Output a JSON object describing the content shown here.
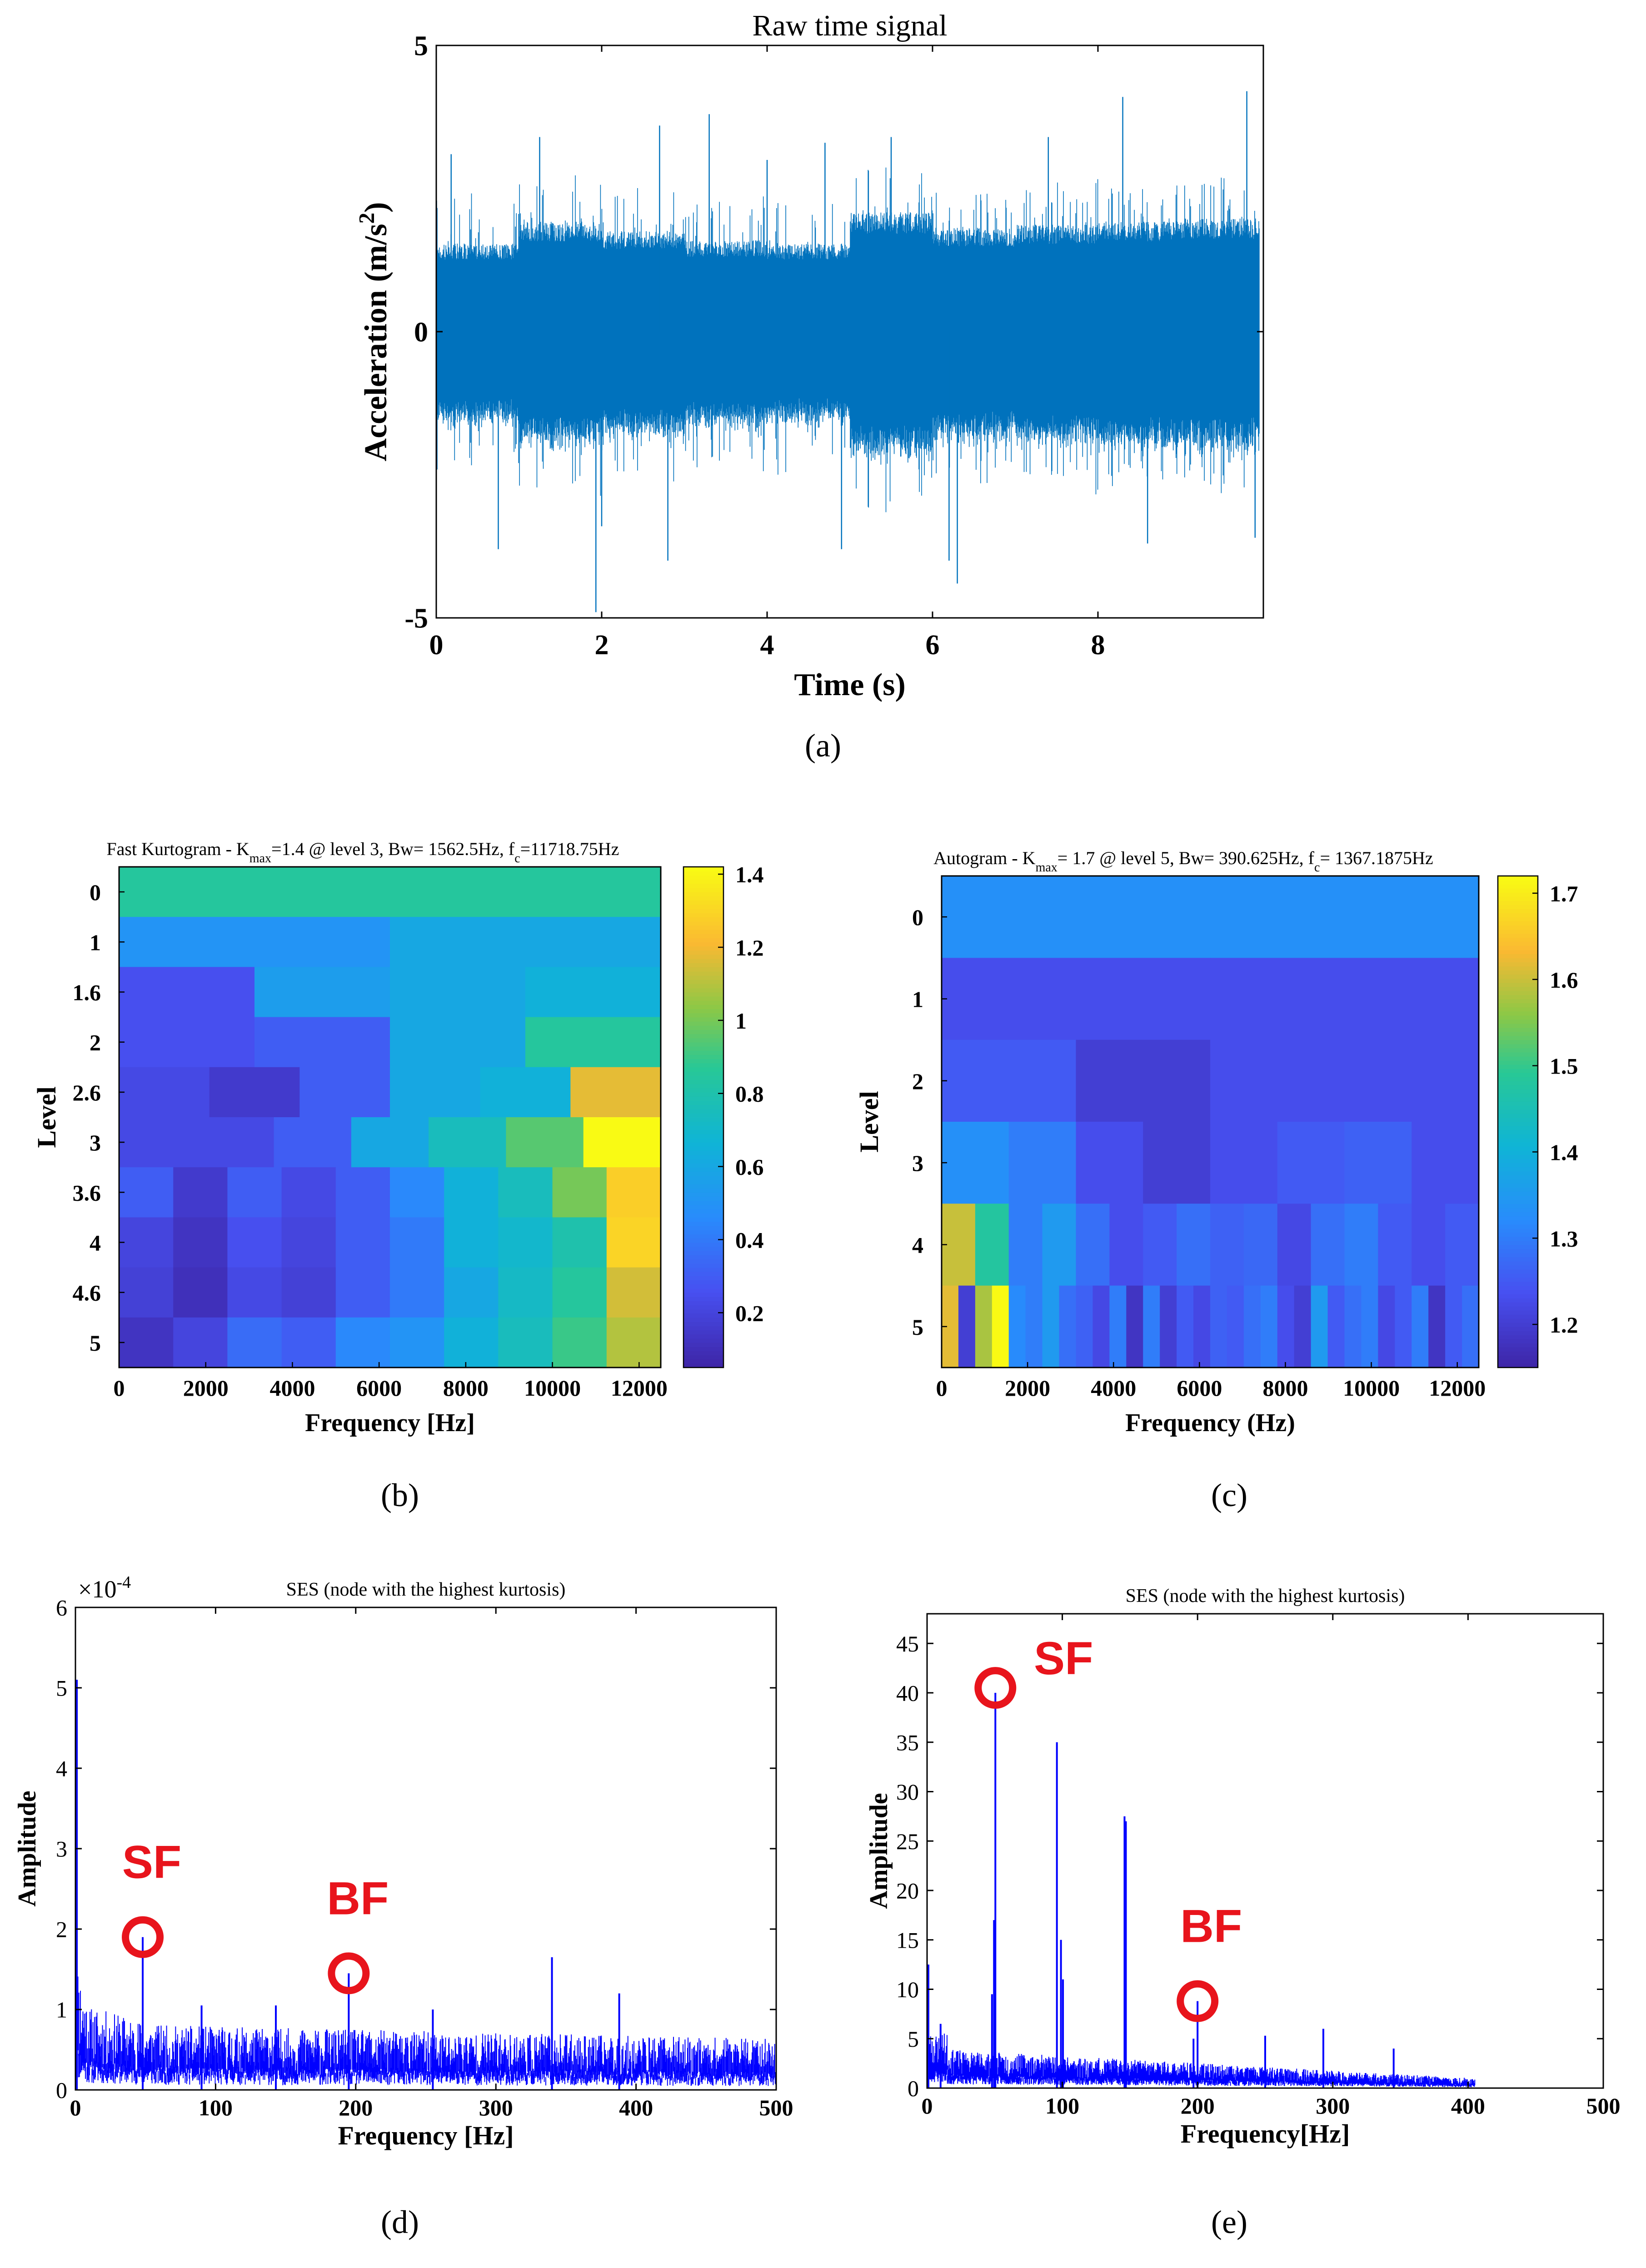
{
  "colors": {
    "signal": "#0072BD",
    "spectrum": "#0000FF",
    "annotation": "#E8141C",
    "axis": "#000000"
  },
  "captions": [
    "(a)",
    "(b)",
    "(c)",
    "(d)",
    "(e)"
  ],
  "chart_data": [
    {
      "id": "a",
      "type": "line",
      "title": "Raw time signal",
      "xlabel": "Time (s)",
      "ylabel": "Acceleration (m/s",
      "ylabel_sup": "2",
      "ylabel_end": ")",
      "xlim": [
        0,
        10
      ],
      "ylim": [
        -5,
        5
      ],
      "xticks": [
        0,
        2,
        4,
        6,
        8
      ],
      "yticks": [
        -5,
        0,
        5
      ],
      "band_core": [
        1.4,
        1.75,
        1.6,
        1.45,
        1.4,
        1.9,
        1.65,
        1.7,
        1.75,
        1.8
      ],
      "peaks": [
        {
          "t": 0.18,
          "v": 3.1
        },
        {
          "t": 0.75,
          "v": -3.8
        },
        {
          "t": 1.25,
          "v": 3.4
        },
        {
          "t": 1.93,
          "v": -4.9
        },
        {
          "t": 2.0,
          "v": -3.4
        },
        {
          "t": 2.7,
          "v": 3.6
        },
        {
          "t": 2.8,
          "v": -4.0
        },
        {
          "t": 3.3,
          "v": 3.8
        },
        {
          "t": 4.0,
          "v": 3.0
        },
        {
          "t": 4.7,
          "v": 3.3
        },
        {
          "t": 4.9,
          "v": -3.8
        },
        {
          "t": 5.5,
          "v": 3.4
        },
        {
          "t": 6.2,
          "v": -4.0
        },
        {
          "t": 6.3,
          "v": -4.4
        },
        {
          "t": 7.4,
          "v": 3.4
        },
        {
          "t": 8.3,
          "v": 4.1
        },
        {
          "t": 8.6,
          "v": -3.7
        },
        {
          "t": 9.8,
          "v": 4.2
        },
        {
          "t": 9.9,
          "v": -3.6
        }
      ]
    },
    {
      "id": "b",
      "type": "heatmap",
      "title_pre": "Fast Kurtogram - K",
      "title_sub": "max",
      "title_mid": "=1.4 @ level 3, Bw= 1562.5Hz, f",
      "title_sub2": "c",
      "title_post": "=11718.75Hz",
      "xlabel": "Frequency [Hz]",
      "ylabel": "Level",
      "xlim": [
        0,
        12500
      ],
      "xticks": [
        0,
        2000,
        4000,
        6000,
        8000,
        10000,
        12000
      ],
      "levels": [
        "0",
        "1",
        "1.6",
        "2",
        "2.6",
        "3",
        "3.6",
        "4",
        "4.6",
        "5"
      ],
      "colorbar": {
        "range": [
          0.05,
          1.42
        ],
        "ticks": [
          0.2,
          0.4,
          0.6,
          0.8,
          1,
          1.2,
          1.4
        ]
      },
      "rows": [
        [
          0.85
        ],
        [
          0.5,
          0.6
        ],
        [
          0.25,
          0.55,
          0.6,
          0.65
        ],
        [
          0.25,
          0.3,
          0.6,
          0.85
        ],
        [
          0.22,
          0.15,
          0.3,
          0.6,
          0.65,
          1.18
        ],
        [
          0.22,
          0.22,
          0.3,
          0.6,
          0.75,
          0.95,
          1.42
        ],
        [
          0.3,
          0.15,
          0.3,
          0.22,
          0.3,
          0.45,
          0.65,
          0.75,
          1.0,
          1.28
        ],
        [
          0.2,
          0.12,
          0.25,
          0.2,
          0.3,
          0.4,
          0.65,
          0.7,
          0.8,
          1.3
        ],
        [
          0.18,
          0.1,
          0.22,
          0.18,
          0.3,
          0.4,
          0.6,
          0.72,
          0.85,
          1.15
        ],
        [
          0.12,
          0.2,
          0.35,
          0.3,
          0.45,
          0.5,
          0.65,
          0.75,
          0.9,
          1.1
        ]
      ]
    },
    {
      "id": "c",
      "type": "heatmap",
      "title_pre": "Autogram - K",
      "title_sub": "max",
      "title_mid": "= 1.7 @ level 5, Bw= 390.625Hz, f",
      "title_sub2": "c",
      "title_post": "= 1367.1875Hz",
      "xlabel": "Frequency (Hz)",
      "ylabel": "Level",
      "xlim": [
        0,
        12500
      ],
      "xticks": [
        0,
        2000,
        4000,
        6000,
        8000,
        10000,
        12000
      ],
      "levels": [
        "0",
        "1",
        "2",
        "3",
        "4",
        "5"
      ],
      "colorbar": {
        "range": [
          1.15,
          1.72
        ],
        "ticks": [
          1.2,
          1.3,
          1.4,
          1.5,
          1.6,
          1.7
        ]
      },
      "rows": [
        [
          1.33
        ],
        [
          1.23,
          1.23
        ],
        [
          1.25,
          1.2,
          1.23,
          1.23
        ],
        [
          1.33,
          1.3,
          1.23,
          1.2,
          1.23,
          1.25,
          1.26,
          1.23
        ],
        [
          1.6,
          1.48,
          1.3,
          1.35,
          1.28,
          1.23,
          1.25,
          1.28,
          1.26,
          1.27,
          1.22,
          1.28,
          1.3,
          1.25,
          1.23,
          1.25
        ],
        [
          1.62,
          1.2,
          1.58,
          1.72,
          1.32,
          1.3,
          1.35,
          1.28,
          1.26,
          1.22,
          1.3,
          1.18,
          1.3,
          1.2,
          1.25,
          1.22,
          1.26,
          1.25,
          1.28,
          1.3,
          1.23,
          1.2,
          1.35,
          1.25,
          1.28,
          1.3,
          1.22,
          1.25,
          1.3,
          1.18,
          1.25,
          1.28
        ]
      ]
    },
    {
      "id": "d",
      "type": "line",
      "title": "SES (node with the highest kurtosis)",
      "xlabel": "Frequency [Hz]",
      "ylabel": "Amplitude",
      "exponent": "×10",
      "exponent_power": "-4",
      "xlim": [
        0,
        500
      ],
      "ylim": [
        0,
        6
      ],
      "xticks": [
        0,
        100,
        200,
        300,
        400,
        500
      ],
      "yticks": [
        0,
        1,
        2,
        3,
        4,
        5,
        6
      ],
      "noise_level": 0.45,
      "noise_falloff": [
        {
          "f": 0,
          "a": 1.5
        },
        {
          "f": 10,
          "a": 0.9
        },
        {
          "f": 60,
          "a": 0.7
        },
        {
          "f": 500,
          "a": 0.55
        }
      ],
      "peaks": [
        {
          "f": 1,
          "v": 5.1
        },
        {
          "f": 48,
          "v": 1.9
        },
        {
          "f": 195,
          "v": 1.45
        },
        {
          "f": 143,
          "v": 1.05
        },
        {
          "f": 340,
          "v": 1.65
        },
        {
          "f": 388,
          "v": 1.2
        },
        {
          "f": 255,
          "v": 1.0
        },
        {
          "f": 90,
          "v": 1.05
        }
      ],
      "annotations": [
        {
          "label": "SF",
          "f": 48,
          "v": 1.9
        },
        {
          "label": "BF",
          "f": 195,
          "v": 1.45
        }
      ]
    },
    {
      "id": "e",
      "type": "line",
      "title": "SES (node with the highest kurtosis)",
      "xlabel": "Frequency[Hz]",
      "ylabel": "Amplitude",
      "xlim": [
        0,
        500
      ],
      "ylim": [
        0,
        48
      ],
      "xticks": [
        0,
        100,
        200,
        300,
        400,
        500
      ],
      "yticks": [
        0,
        5,
        10,
        15,
        20,
        25,
        30,
        35,
        40,
        45
      ],
      "noise_end": 405,
      "peaks": [
        {
          "f": 1,
          "v": 12.5
        },
        {
          "f": 10,
          "v": 6.5
        },
        {
          "f": 48,
          "v": 9.5
        },
        {
          "f": 49.5,
          "v": 17
        },
        {
          "f": 50.5,
          "v": 40
        },
        {
          "f": 96,
          "v": 35
        },
        {
          "f": 99,
          "v": 15
        },
        {
          "f": 100.5,
          "v": 11
        },
        {
          "f": 146,
          "v": 27.5
        },
        {
          "f": 147,
          "v": 27
        },
        {
          "f": 200,
          "v": 8.8
        },
        {
          "f": 197,
          "v": 5
        },
        {
          "f": 250,
          "v": 5.3
        },
        {
          "f": 293,
          "v": 6
        },
        {
          "f": 345,
          "v": 4
        }
      ],
      "annotations": [
        {
          "label": "SF",
          "f": 50.5,
          "v": 40.5
        },
        {
          "label": "BF",
          "f": 200,
          "v": 8.8
        }
      ]
    }
  ]
}
